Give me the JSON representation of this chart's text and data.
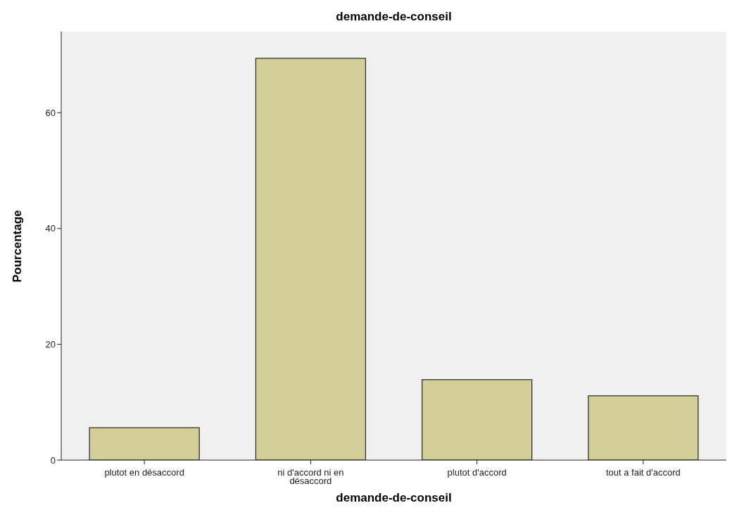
{
  "chart_data": {
    "type": "bar",
    "title": "demande-de-conseil",
    "xlabel": "demande-de-conseil",
    "ylabel": "Pourcentage",
    "categories": [
      "plutot en désaccord",
      "ni d'accord ni en désaccord",
      "plutot d'accord",
      "tout a fait d'accord"
    ],
    "values": [
      5.6,
      69.4,
      13.9,
      11.1
    ],
    "color": "#d3ce97",
    "ylim": [
      0,
      74
    ],
    "yticks": [
      0,
      20,
      40,
      60
    ],
    "grid": false
  }
}
